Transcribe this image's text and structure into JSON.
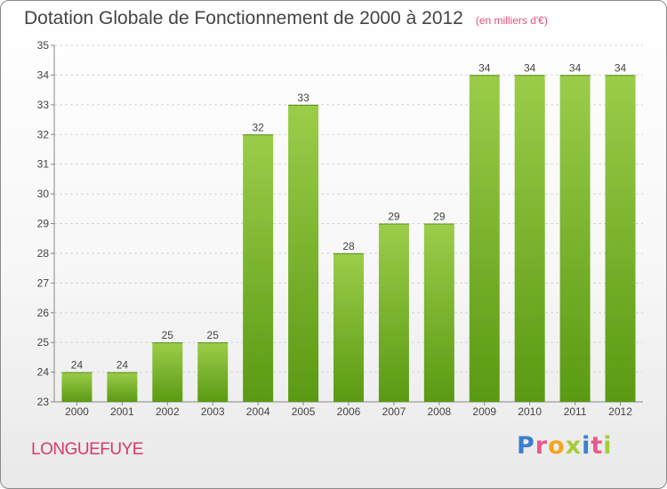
{
  "title": "Dotation Globale de Fonctionnement de 2000 à 2012",
  "subtitle": "(en milliers d'€)",
  "commune": "LONGUEFUYE",
  "logo_text": "Proxiti",
  "colors": {
    "bar_top": "#9ccd4a",
    "bar_bottom": "#5a9a12",
    "title": "#444444",
    "commune": "#d93a6a"
  },
  "chart_data": {
    "type": "bar",
    "categories": [
      "2000",
      "2001",
      "2002",
      "2003",
      "2004",
      "2005",
      "2006",
      "2007",
      "2008",
      "2009",
      "2010",
      "2011",
      "2012"
    ],
    "values": [
      24,
      24,
      25,
      25,
      32,
      33,
      28,
      29,
      29,
      34,
      34,
      34,
      34
    ],
    "data_labels": [
      "24",
      "24",
      "25",
      "25",
      "32",
      "33",
      "28",
      "29",
      "29",
      "34",
      "34",
      "34",
      "34"
    ],
    "ylim": [
      23,
      35
    ],
    "yticks": [
      23,
      24,
      25,
      26,
      27,
      28,
      29,
      30,
      31,
      32,
      33,
      34,
      35
    ],
    "grid": true,
    "xlabel": "",
    "ylabel": ""
  }
}
